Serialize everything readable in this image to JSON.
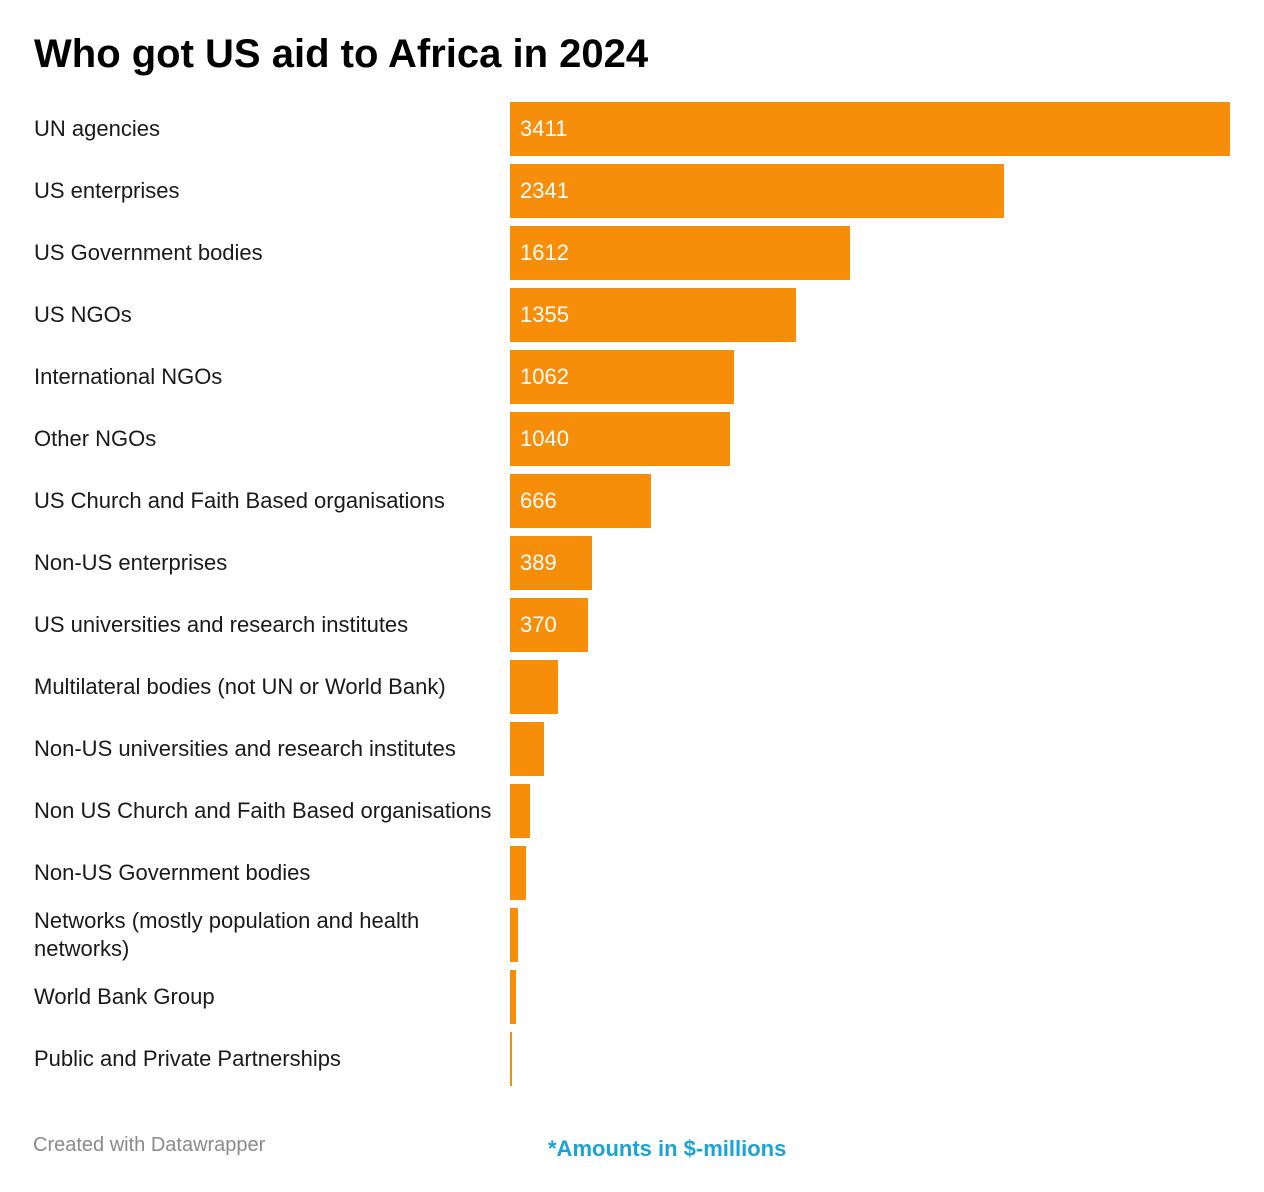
{
  "chart_data": {
    "type": "bar",
    "orientation": "horizontal",
    "title": "Who got US aid to Africa in 2024",
    "categories": [
      "UN agencies",
      "US enterprises",
      "US Government bodies",
      "US NGOs",
      "International NGOs",
      "Other NGOs",
      "US Church and Faith Based organisations",
      "Non-US enterprises",
      "US universities and research institutes",
      "Multilateral bodies (not UN or World Bank)",
      "Non-US universities and research institutes",
      "Non US Church and Faith Based organisations",
      "Non-US Government bodies",
      "Networks (mostly population and health networks)",
      "World Bank Group",
      "Public and Private Partnerships"
    ],
    "values": [
      3411,
      2341,
      1612,
      1355,
      1062,
      1040,
      666,
      389,
      370,
      228,
      160,
      95,
      76,
      38,
      30,
      8
    ],
    "value_labels": [
      "3411",
      "2341",
      "1612",
      "1355",
      "1062",
      "1040",
      "666",
      "389",
      "370",
      "",
      "",
      "",
      "",
      "",
      "",
      ""
    ],
    "xlim": [
      0,
      3411
    ],
    "bar_color": "#f78e0a",
    "note": "*Amounts in $-millions",
    "note_color": "#1aa3d6",
    "credit": "Created with Datawrapper"
  }
}
